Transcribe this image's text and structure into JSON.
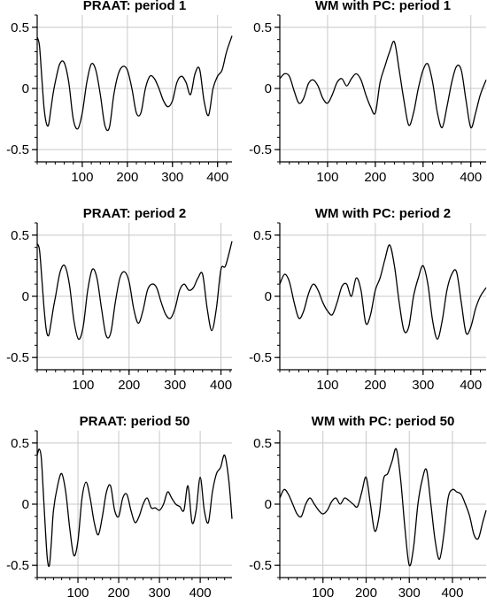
{
  "colors": {
    "line": "#000000",
    "grid": "#c8c8c8",
    "axis": "#000000",
    "background": "#ffffff"
  },
  "chart_data": [
    {
      "type": "line",
      "title": "PRAAT: period 1",
      "grid": true,
      "xlim": [
        0,
        432
      ],
      "ylim": [
        -0.6,
        0.6
      ],
      "xticks": [
        100,
        200,
        300,
        400
      ],
      "yticks": [
        -0.5,
        0,
        0.5
      ],
      "xtick_labels": [
        "100",
        "200",
        "300",
        "400"
      ],
      "ytick_labels": [
        "-0.5",
        "0",
        "0.5"
      ],
      "series": [
        {
          "x": [
            0,
            5,
            10,
            15,
            20,
            25,
            30,
            35,
            40,
            50,
            60,
            70,
            80,
            90,
            100,
            110,
            120,
            130,
            140,
            150,
            160,
            170,
            180,
            190,
            200,
            210,
            220,
            230,
            240,
            250,
            260,
            270,
            280,
            290,
            300,
            310,
            320,
            330,
            340,
            350,
            360,
            370,
            380,
            390,
            400,
            410,
            420,
            432
          ],
          "values": [
            0.42,
            0.35,
            0.1,
            -0.15,
            -0.28,
            -0.3,
            -0.18,
            -0.05,
            0.05,
            0.2,
            0.21,
            0.05,
            -0.25,
            -0.33,
            -0.2,
            0.05,
            0.2,
            0.15,
            -0.05,
            -0.3,
            -0.32,
            -0.05,
            0.12,
            0.18,
            0.15,
            0,
            -0.2,
            -0.2,
            0,
            0.1,
            0.08,
            0,
            -0.1,
            -0.15,
            -0.1,
            0.05,
            0.1,
            0.05,
            -0.05,
            0.12,
            0.16,
            -0.1,
            -0.22,
            0,
            0.1,
            0.15,
            0.3,
            0.43
          ]
        }
      ]
    },
    {
      "type": "line",
      "title": "WM with PC: period 1",
      "grid": true,
      "xlim": [
        0,
        432
      ],
      "ylim": [
        -0.6,
        0.6
      ],
      "xticks": [
        100,
        200,
        300,
        400
      ],
      "yticks": [
        -0.5,
        0,
        0.5
      ],
      "xtick_labels": [
        "100",
        "200",
        "300",
        "400"
      ],
      "ytick_labels": [
        "-0.5",
        "0",
        "0.5"
      ],
      "series": [
        {
          "x": [
            0,
            10,
            20,
            30,
            40,
            50,
            60,
            70,
            80,
            90,
            100,
            110,
            120,
            130,
            140,
            150,
            160,
            170,
            180,
            190,
            200,
            210,
            220,
            230,
            240,
            250,
            260,
            270,
            280,
            290,
            300,
            310,
            320,
            330,
            340,
            350,
            360,
            370,
            380,
            390,
            400,
            410,
            420,
            432
          ],
          "values": [
            0.08,
            0.12,
            0.1,
            -0.02,
            -0.12,
            -0.08,
            0.04,
            0.07,
            0.02,
            -0.08,
            -0.12,
            -0.05,
            0.05,
            0.08,
            0.02,
            0.08,
            0.12,
            0.07,
            -0.05,
            -0.15,
            -0.2,
            0.05,
            0.18,
            0.3,
            0.38,
            0.15,
            -0.1,
            -0.3,
            -0.2,
            0,
            0.15,
            0.2,
            0.05,
            -0.2,
            -0.32,
            -0.15,
            0.05,
            0.18,
            0.15,
            -0.1,
            -0.32,
            -0.2,
            -0.05,
            0.07
          ]
        }
      ]
    },
    {
      "type": "line",
      "title": "PRAAT: period 2",
      "grid": true,
      "xlim": [
        0,
        424
      ],
      "ylim": [
        -0.6,
        0.6
      ],
      "xticks": [
        100,
        200,
        300,
        400
      ],
      "yticks": [
        -0.5,
        0,
        0.5
      ],
      "xtick_labels": [
        "100",
        "200",
        "300",
        "400"
      ],
      "ytick_labels": [
        "-0.5",
        "0",
        "0.5"
      ],
      "series": [
        {
          "x": [
            0,
            5,
            10,
            15,
            20,
            25,
            30,
            35,
            40,
            50,
            60,
            70,
            80,
            90,
            100,
            110,
            120,
            130,
            140,
            150,
            160,
            170,
            180,
            190,
            200,
            210,
            220,
            230,
            240,
            250,
            260,
            270,
            280,
            290,
            300,
            310,
            320,
            330,
            340,
            350,
            360,
            370,
            380,
            390,
            400,
            410,
            424
          ],
          "values": [
            0.43,
            0.38,
            0.15,
            -0.1,
            -0.28,
            -0.32,
            -0.22,
            -0.1,
            0,
            0.2,
            0.25,
            0.1,
            -0.2,
            -0.35,
            -0.25,
            0.05,
            0.22,
            0.15,
            -0.1,
            -0.32,
            -0.3,
            -0.05,
            0.15,
            0.2,
            0.12,
            -0.1,
            -0.22,
            -0.12,
            0.05,
            0.1,
            0.07,
            -0.05,
            -0.15,
            -0.18,
            -0.1,
            0.05,
            0.1,
            0.05,
            0.07,
            0.15,
            0.18,
            -0.1,
            -0.28,
            -0.1,
            0.22,
            0.25,
            0.45
          ]
        }
      ]
    },
    {
      "type": "line",
      "title": "WM with PC: period 2",
      "grid": true,
      "xlim": [
        0,
        432
      ],
      "ylim": [
        -0.6,
        0.6
      ],
      "xticks": [
        100,
        200,
        300,
        400
      ],
      "yticks": [
        -0.5,
        0,
        0.5
      ],
      "xtick_labels": [
        "100",
        "200",
        "300",
        "400"
      ],
      "ytick_labels": [
        "-0.5",
        "0",
        "0.5"
      ],
      "series": [
        {
          "x": [
            0,
            10,
            20,
            30,
            40,
            50,
            60,
            70,
            80,
            90,
            100,
            110,
            120,
            130,
            140,
            150,
            160,
            170,
            180,
            190,
            200,
            210,
            220,
            230,
            240,
            250,
            260,
            270,
            280,
            290,
            300,
            310,
            320,
            330,
            340,
            350,
            360,
            370,
            380,
            390,
            400,
            410,
            420,
            432
          ],
          "values": [
            0.1,
            0.18,
            0.12,
            -0.05,
            -0.18,
            -0.12,
            0.02,
            0.1,
            0.05,
            -0.05,
            -0.12,
            -0.15,
            -0.05,
            0.08,
            0.1,
            0,
            0.15,
            0.05,
            -0.22,
            -0.15,
            0.05,
            0.15,
            0.3,
            0.42,
            0.25,
            -0.05,
            -0.28,
            -0.25,
            0,
            0.15,
            0.25,
            0.1,
            -0.2,
            -0.35,
            -0.2,
            0.05,
            0.18,
            0.2,
            -0.05,
            -0.3,
            -0.25,
            -0.1,
            0,
            0.07
          ]
        }
      ]
    },
    {
      "type": "line",
      "title": "PRAAT: period 50",
      "grid": true,
      "xlim": [
        0,
        478
      ],
      "ylim": [
        -0.6,
        0.6
      ],
      "xticks": [
        100,
        200,
        300,
        400
      ],
      "yticks": [
        -0.5,
        0,
        0.5
      ],
      "xtick_labels": [
        "100",
        "200",
        "300",
        "400"
      ],
      "ytick_labels": [
        "-0.5",
        "0",
        "0.5"
      ],
      "series": [
        {
          "x": [
            0,
            5,
            10,
            15,
            20,
            25,
            30,
            35,
            40,
            50,
            60,
            70,
            80,
            90,
            100,
            110,
            120,
            130,
            140,
            150,
            160,
            170,
            180,
            190,
            200,
            210,
            220,
            230,
            240,
            250,
            260,
            270,
            280,
            290,
            300,
            310,
            320,
            330,
            340,
            350,
            360,
            370,
            380,
            390,
            400,
            410,
            420,
            430,
            440,
            450,
            460,
            470,
            478
          ],
          "values": [
            0.4,
            0.45,
            0.38,
            0.1,
            -0.2,
            -0.45,
            -0.5,
            -0.3,
            -0.05,
            0.15,
            0.25,
            0.1,
            -0.2,
            -0.42,
            -0.3,
            0.05,
            0.18,
            0.05,
            -0.15,
            -0.25,
            -0.1,
            0.1,
            0.15,
            -0.05,
            -0.1,
            0.05,
            0.08,
            -0.05,
            -0.15,
            -0.1,
            0,
            0.05,
            -0.03,
            -0.03,
            -0.05,
            0,
            0.1,
            0.05,
            0,
            -0.02,
            -0.05,
            0.15,
            -0.15,
            -0.05,
            0.22,
            -0.05,
            -0.15,
            0.1,
            0.25,
            0.3,
            0.4,
            0.2,
            -0.12
          ]
        }
      ]
    },
    {
      "type": "line",
      "title": "WM with PC: period 50",
      "grid": true,
      "xlim": [
        0,
        478
      ],
      "ylim": [
        -0.6,
        0.6
      ],
      "xticks": [
        100,
        200,
        300,
        400
      ],
      "yticks": [
        -0.5,
        0,
        0.5
      ],
      "xtick_labels": [
        "100",
        "200",
        "300",
        "400"
      ],
      "ytick_labels": [
        "-0.5",
        "0",
        "0.5"
      ],
      "series": [
        {
          "x": [
            0,
            10,
            20,
            30,
            40,
            50,
            60,
            70,
            80,
            90,
            100,
            110,
            120,
            130,
            140,
            150,
            160,
            170,
            180,
            190,
            200,
            210,
            220,
            230,
            240,
            250,
            260,
            270,
            280,
            290,
            300,
            310,
            320,
            330,
            340,
            350,
            360,
            370,
            380,
            390,
            400,
            410,
            420,
            430,
            440,
            450,
            460,
            470,
            478
          ],
          "values": [
            0.05,
            0.12,
            0.08,
            0,
            -0.08,
            -0.1,
            0,
            0.05,
            0,
            -0.05,
            -0.08,
            -0.05,
            0.02,
            0.05,
            0,
            0.05,
            0.03,
            0,
            -0.02,
            0.1,
            0.22,
            0,
            -0.22,
            -0.1,
            0.2,
            0.25,
            0.35,
            0.45,
            0.2,
            -0.2,
            -0.5,
            -0.35,
            0,
            0.2,
            0.28,
            0,
            -0.3,
            -0.45,
            -0.25,
            0.05,
            0.12,
            0.1,
            0.08,
            0,
            -0.1,
            -0.25,
            -0.28,
            -0.15,
            -0.05
          ]
        }
      ]
    }
  ]
}
